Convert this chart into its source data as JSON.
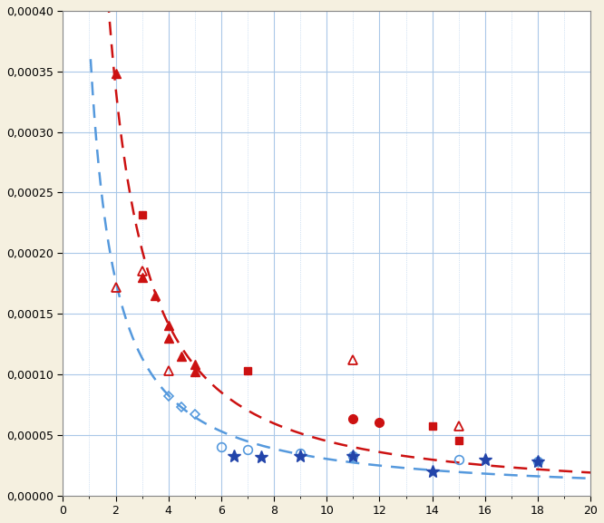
{
  "xlim": [
    0,
    20
  ],
  "ylim": [
    0,
    0.0004
  ],
  "xticks": [
    0,
    2,
    4,
    6,
    8,
    10,
    12,
    14,
    16,
    18,
    20
  ],
  "yticks": [
    0.0,
    5e-05,
    0.0001,
    0.00015,
    0.0002,
    0.00025,
    0.0003,
    0.00035,
    0.0004
  ],
  "bg_color": "#f5f0e0",
  "plot_bg_color": "#ffffff",
  "grid_color": "#aac8e8",
  "red_curve": {
    "color": "#cc1111",
    "A": 0.0008,
    "b": -1.25
  },
  "blue_curve": {
    "color": "#5599dd",
    "A": 0.00038,
    "b": -1.1
  },
  "red_filled_triangle": {
    "color": "#cc1111",
    "data": [
      [
        2,
        0.000348
      ],
      [
        3,
        0.00018
      ],
      [
        3.5,
        0.000165
      ],
      [
        4,
        0.00014
      ],
      [
        4,
        0.00013
      ],
      [
        4.5,
        0.000115
      ],
      [
        5,
        0.000108
      ],
      [
        5,
        0.000102
      ]
    ]
  },
  "red_open_triangle": {
    "color": "#cc1111",
    "data": [
      [
        2,
        0.000172
      ],
      [
        3,
        0.000185
      ],
      [
        4,
        0.000103
      ],
      [
        11,
        0.000112
      ],
      [
        15,
        5.7e-05
      ]
    ]
  },
  "red_filled_square": {
    "color": "#cc1111",
    "data": [
      [
        3,
        0.000232
      ],
      [
        7,
        0.000103
      ],
      [
        14,
        5.7e-05
      ],
      [
        15,
        4.5e-05
      ]
    ]
  },
  "red_filled_circle": {
    "color": "#cc1111",
    "data": [
      [
        11,
        6.3e-05
      ],
      [
        12,
        6e-05
      ]
    ]
  },
  "blue_open_diamond": {
    "color": "#5599dd",
    "data": [
      [
        4,
        8.2e-05
      ],
      [
        4.5,
        7.3e-05
      ],
      [
        5,
        6.7e-05
      ]
    ]
  },
  "blue_open_circle": {
    "color": "#5599dd",
    "data": [
      [
        6,
        4e-05
      ],
      [
        7,
        3.8e-05
      ],
      [
        9,
        3.5e-05
      ],
      [
        11,
        3.3e-05
      ],
      [
        15,
        3e-05
      ],
      [
        18,
        2.8e-05
      ]
    ]
  },
  "blue_asterisk": {
    "color": "#2244aa",
    "data": [
      [
        6.5,
        3.3e-05
      ],
      [
        7.5,
        3.2e-05
      ],
      [
        9,
        3.3e-05
      ],
      [
        11,
        3.3e-05
      ],
      [
        14,
        2e-05
      ],
      [
        16,
        3e-05
      ],
      [
        18,
        2.8e-05
      ]
    ]
  }
}
